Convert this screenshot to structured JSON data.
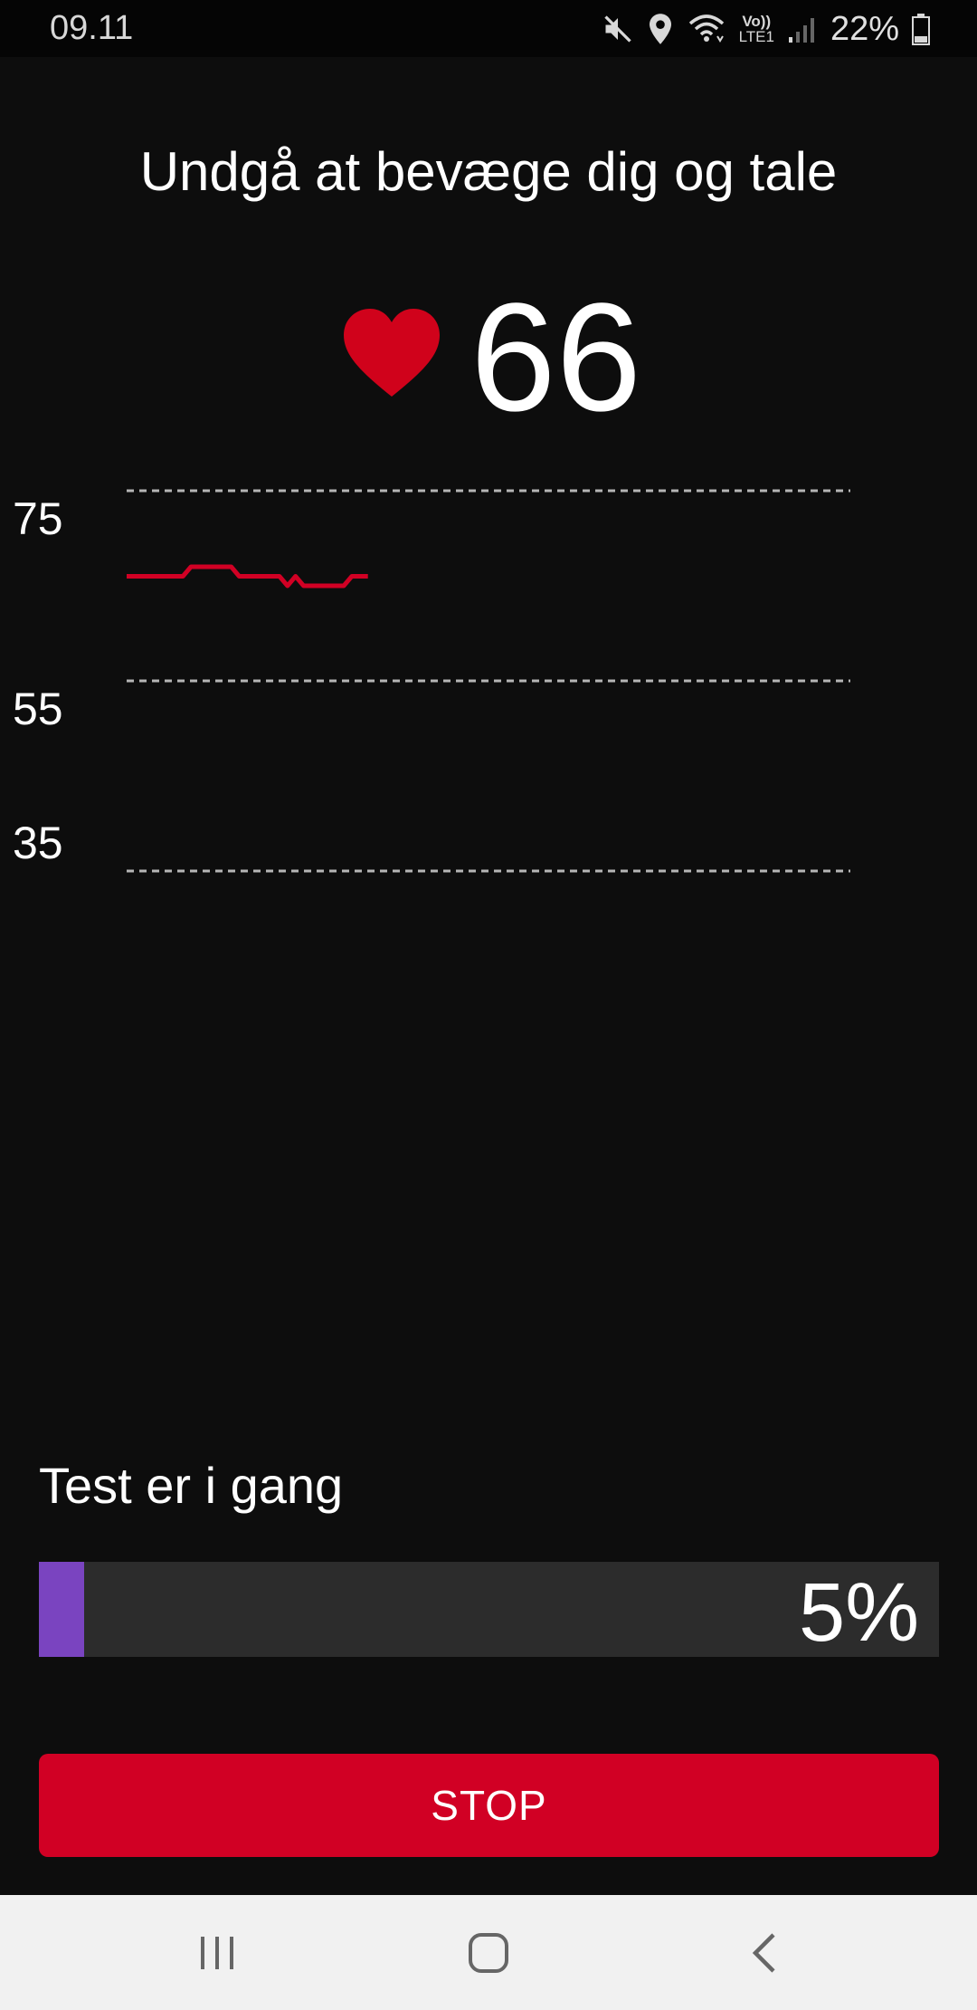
{
  "status_bar": {
    "time": "09.11",
    "icons": [
      "mute-icon",
      "location-icon",
      "wifi-icon",
      "volte-icon",
      "signal-icon",
      "battery-icon"
    ],
    "volte_label_top": "Vo))",
    "volte_label_bottom": "LTE1",
    "battery": "22%"
  },
  "instruction": "Undgå at bevæge dig og tale",
  "heart_rate": {
    "value": "66",
    "icon": "heart-icon",
    "color": "#d0021b"
  },
  "chart_data": {
    "type": "line",
    "yticks": [
      75,
      55,
      35
    ],
    "ylim": [
      35,
      75
    ],
    "grid": "dashed-horizontal",
    "series": [
      {
        "color": "#d10024",
        "values": [
          66,
          66,
          66,
          66,
          66,
          66,
          66,
          66,
          67,
          67,
          67,
          67,
          67,
          67,
          66,
          66,
          66,
          66,
          66,
          66,
          65,
          66,
          65,
          65,
          65,
          65,
          65,
          65,
          66,
          66,
          66
        ]
      }
    ],
    "x_max_points": 90
  },
  "progress": {
    "label": "Test er i gang",
    "percent": 5,
    "percent_text": "5%",
    "fill_color": "#7a44c0"
  },
  "stop_button": {
    "label": "STOP",
    "color": "#d10024"
  },
  "nav_bar": {
    "items": [
      "recent-apps-icon",
      "home-icon",
      "back-icon"
    ]
  }
}
